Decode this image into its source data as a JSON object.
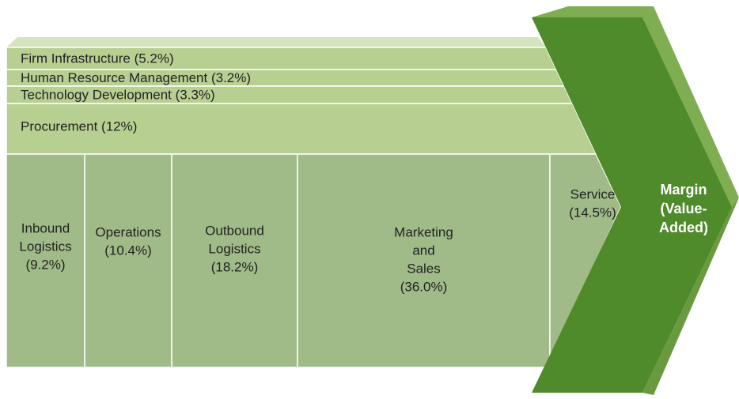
{
  "support_activities": [
    {
      "label": "Firm Infrastructure (5.2%)"
    },
    {
      "label": "Human Resource Management (3.2%)"
    },
    {
      "label": "Technology Development (3.3%)"
    },
    {
      "label": "Procurement (12%)"
    }
  ],
  "primary_activities": [
    {
      "lines": [
        "Inbound",
        "Logistics",
        "(9.2%)"
      ]
    },
    {
      "lines": [
        "Operations",
        "(10.4%)"
      ]
    },
    {
      "lines": [
        "Outbound",
        "Logistics",
        "(18.2%)"
      ]
    },
    {
      "lines": [
        "Marketing",
        "and",
        "Sales",
        "(36.0%)"
      ]
    },
    {
      "lines": [
        "Service",
        "(14.5%)"
      ]
    }
  ],
  "margin": {
    "lines": [
      "Margin",
      "(Value-",
      "Added)"
    ]
  }
}
